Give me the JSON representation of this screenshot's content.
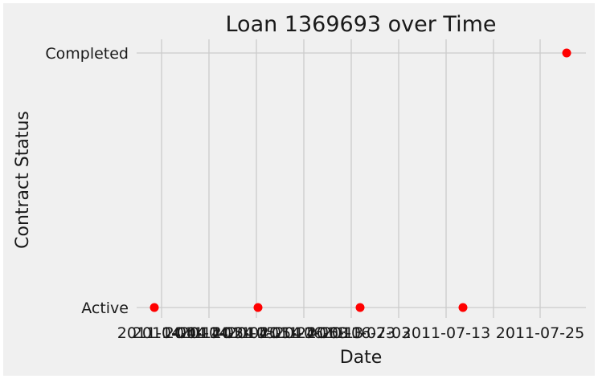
{
  "chart_data": {
    "type": "scatter",
    "title": "Loan 1369693 over Time",
    "xlabel": "Date",
    "ylabel": "Contract Status",
    "x_ticks": [
      "2011-04-04",
      "2011-04-14",
      "2011-04-24",
      "2011-05-04",
      "2011-05-14",
      "2011-05-24",
      "2011-06-03",
      "2011-06-13",
      "2011-06-23",
      "2011-07-03",
      "2011-07-13",
      "2011-07-25"
    ],
    "y_ticks": [
      "Active",
      "Completed"
    ],
    "points": [
      {
        "x": "2011-04-01",
        "y": "Active"
      },
      {
        "x": "2011-05-03",
        "y": "Active"
      },
      {
        "x": "2011-06-04",
        "y": "Active"
      },
      {
        "x": "2011-07-06",
        "y": "Active"
      },
      {
        "x": "2011-08-02",
        "y": "Completed"
      }
    ],
    "xlim": [
      "2010-03-30",
      "2011-08-05"
    ],
    "grid": true,
    "colors": {
      "background": "#f0f0f0",
      "grid": "#cbcbcb",
      "point": "#ff0000"
    }
  }
}
